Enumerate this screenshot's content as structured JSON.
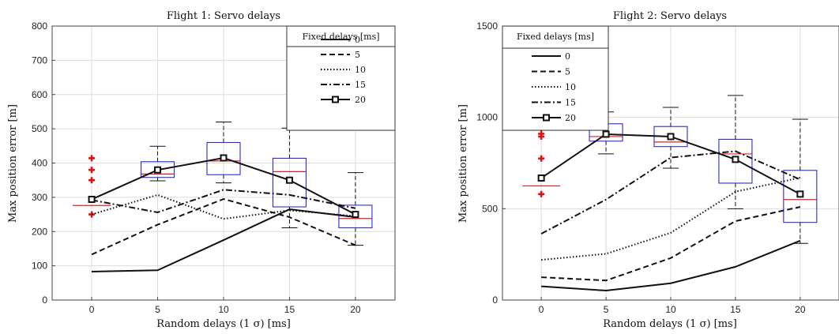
{
  "chart_data": [
    {
      "type": "line",
      "title": "Flight 1: Servo delays",
      "xlabel": "Random delays (1 σ)  [ms]",
      "ylabel": "Max position error [m]",
      "xlim": [
        -3,
        23
      ],
      "ylim": [
        0,
        800
      ],
      "x_ticks": [
        "0",
        "5",
        "10",
        "15",
        "20"
      ],
      "y_ticks": [
        "0",
        "100",
        "200",
        "300",
        "400",
        "500",
        "600",
        "700",
        "800"
      ],
      "grid": true,
      "legend": {
        "title": "Fixed delays [ms]",
        "placement": "top-right",
        "entries": [
          "0",
          "5",
          "10",
          "15",
          "20"
        ]
      },
      "x": [
        0,
        5,
        10,
        15,
        20
      ],
      "series": [
        {
          "name": "0",
          "style": "solid",
          "values": [
            83,
            87,
            175,
            265,
            242
          ]
        },
        {
          "name": "5",
          "style": "dashed",
          "values": [
            133,
            220,
            295,
            242,
            160
          ]
        },
        {
          "name": "10",
          "style": "dotted",
          "values": [
            250,
            307,
            237,
            262,
            245
          ]
        },
        {
          "name": "15",
          "style": "dashdot",
          "values": [
            292,
            256,
            322,
            307,
            268
          ]
        },
        {
          "name": "20",
          "style": "solid-square",
          "values": [
            294,
            380,
            415,
            350,
            250
          ]
        }
      ],
      "boxplot": [
        {
          "x": 0,
          "median": 276,
          "outliers": [
            250,
            350,
            380,
            414
          ]
        },
        {
          "x": 5,
          "q1": 358,
          "median": 368,
          "q3": 404,
          "whisker_low": 348,
          "whisker_high": 449
        },
        {
          "x": 10,
          "q1": 366,
          "median": 406,
          "q3": 460,
          "whisker_low": 342,
          "whisker_high": 520
        },
        {
          "x": 15,
          "q1": 272,
          "median": 375,
          "q3": 414,
          "whisker_low": 211,
          "whisker_high": 502
        },
        {
          "x": 20,
          "q1": 211,
          "median": 238,
          "q3": 277,
          "whisker_low": 160,
          "whisker_high": 372
        }
      ]
    },
    {
      "type": "line",
      "title": "Flight 2: Servo delays",
      "xlabel": "Random delays (1 σ)  [ms]",
      "ylabel": "Max position error [m]",
      "xlim": [
        -3,
        23
      ],
      "ylim": [
        0,
        1500
      ],
      "x_ticks": [
        "0",
        "5",
        "10",
        "15",
        "20"
      ],
      "y_ticks": [
        "0",
        "500",
        "1000",
        "1500"
      ],
      "grid": true,
      "legend": {
        "title": "Fixed delays [ms]",
        "placement": "top-left",
        "entries": [
          "0",
          "5",
          "10",
          "15",
          "20"
        ]
      },
      "x": [
        0,
        5,
        10,
        15,
        20
      ],
      "series": [
        {
          "name": "0",
          "style": "solid",
          "values": [
            75,
            52,
            92,
            182,
            325
          ]
        },
        {
          "name": "5",
          "style": "dashed",
          "values": [
            125,
            107,
            230,
            432,
            510
          ]
        },
        {
          "name": "10",
          "style": "dotted",
          "values": [
            220,
            253,
            368,
            593,
            670
          ]
        },
        {
          "name": "15",
          "style": "dashdot",
          "values": [
            363,
            550,
            780,
            815,
            660
          ]
        },
        {
          "name": "20",
          "style": "solid-square",
          "values": [
            668,
            908,
            895,
            770,
            580
          ]
        }
      ],
      "boxplot": [
        {
          "x": 0,
          "median": 625,
          "outliers": [
            580,
            775,
            895,
            910
          ]
        },
        {
          "x": 5,
          "q1": 870,
          "median": 895,
          "q3": 965,
          "whisker_low": 800,
          "whisker_high": 1030
        },
        {
          "x": 10,
          "q1": 840,
          "median": 865,
          "q3": 950,
          "whisker_low": 722,
          "whisker_high": 1055
        },
        {
          "x": 15,
          "q1": 640,
          "median": 800,
          "q3": 880,
          "whisker_low": 500,
          "whisker_high": 1120
        },
        {
          "x": 20,
          "q1": 425,
          "median": 550,
          "q3": 710,
          "whisker_low": 310,
          "whisker_high": 990
        }
      ]
    }
  ]
}
